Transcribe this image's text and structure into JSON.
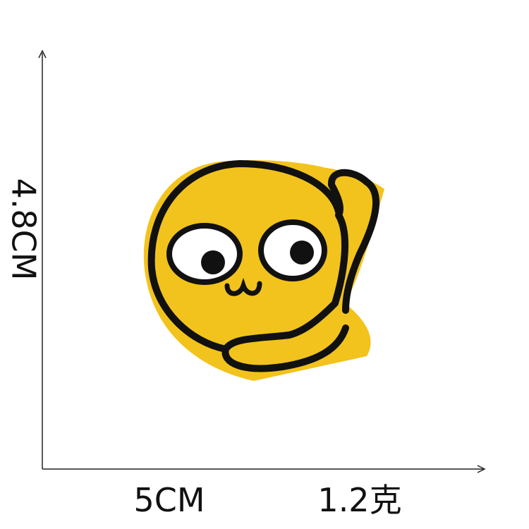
{
  "labels": {
    "height": "4.8CM",
    "width": "5CM",
    "weight": "1.2克"
  }
}
